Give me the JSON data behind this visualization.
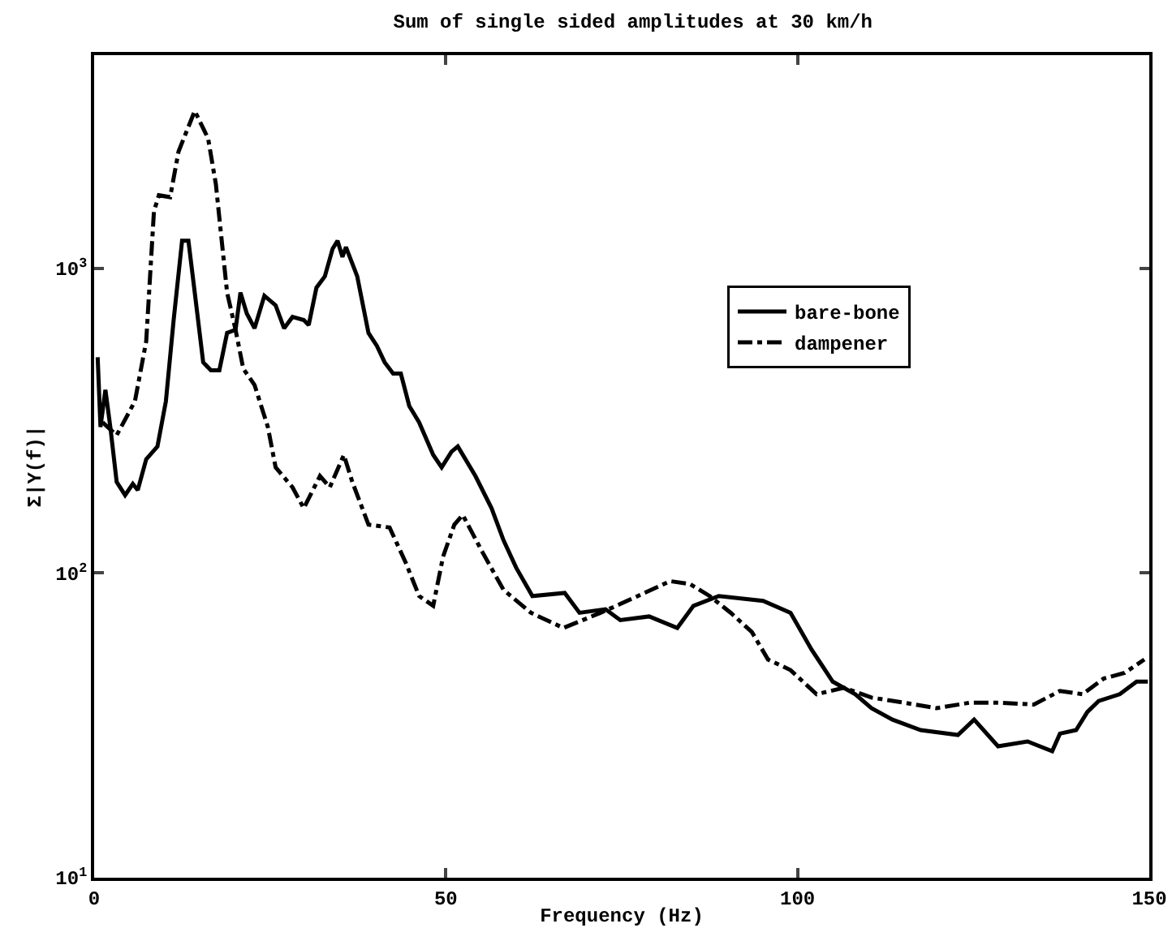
{
  "chart_data": {
    "type": "line",
    "title": "Sum of single sided amplitudes at 30 km/h",
    "xlabel": "Frequency (Hz)",
    "ylabel": "Σ|Y(f)|",
    "xlim": [
      0,
      150
    ],
    "xticks": [
      0,
      50,
      100,
      150
    ],
    "ylim": [
      10,
      5000
    ],
    "log": "y",
    "yticks": [
      {
        "value": 10,
        "label": "10$^{1}$"
      },
      {
        "value": 100,
        "label": "10$^{2}$"
      },
      {
        "value": 1000,
        "label": "10$^{3}$"
      }
    ],
    "grid": false,
    "legend": "right",
    "marker": "none",
    "series": [
      {
        "name": "bare-bone",
        "color": "#000000",
        "line_style": "solid",
        "x": [
          0.5,
          0.9,
          1.6,
          2.3,
          3.2,
          4.4,
          5.5,
          6.2,
          7.4,
          9.0,
          10.2,
          11.3,
          12.5,
          13.4,
          14.3,
          15.5,
          16.6,
          17.8,
          18.9,
          20.1,
          20.8,
          21.7,
          22.8,
          24.2,
          25.8,
          27.0,
          28.2,
          29.8,
          30.5,
          31.6,
          32.8,
          33.9,
          34.6,
          35.3,
          35.8,
          37.4,
          39.0,
          40.2,
          41.3,
          42.5,
          43.6,
          44.8,
          46.2,
          48.2,
          49.4,
          50.8,
          51.7,
          54.2,
          56.5,
          58.2,
          60.0,
          62.3,
          66.9,
          69.0,
          72.7,
          74.8,
          78.9,
          82.9,
          85.2,
          88.8,
          95.1,
          99.0,
          102.0,
          105.0,
          108.2,
          110.5,
          113.5,
          117.5,
          122.8,
          125.1,
          128.5,
          132.7,
          136.2,
          137.3,
          139.6,
          141.2,
          142.8,
          145.8,
          148.2,
          149.8
        ],
        "values": [
          510,
          301,
          399,
          301,
          199,
          180,
          196,
          187,
          236,
          260,
          366,
          676,
          1230,
          1230,
          832,
          491,
          462,
          462,
          613,
          628,
          832,
          710,
          635,
          812,
          755,
          635,
          692,
          676,
          651,
          863,
          940,
          1158,
          1230,
          1089,
          1172,
          940,
          613,
          556,
          491,
          451,
          451,
          353,
          312,
          244,
          222,
          250,
          260,
          208,
          163,
          128,
          104,
          84,
          86,
          74,
          76,
          70,
          72,
          66,
          78,
          84,
          81,
          74,
          56,
          44,
          40,
          36,
          33,
          30.5,
          29.4,
          33,
          27,
          28,
          26,
          29.7,
          30.5,
          35,
          38,
          40,
          44,
          44
        ]
      },
      {
        "name": "dampener",
        "color": "#000000",
        "line_style": "dashdot",
        "x": [
          1.2,
          3.2,
          5.8,
          7.4,
          8.5,
          9.2,
          10.8,
          12.0,
          14.3,
          16.2,
          17.3,
          18.9,
          20.1,
          21.2,
          22.8,
          24.7,
          25.8,
          28.2,
          29.8,
          32.1,
          33.5,
          35.5,
          36.7,
          39.0,
          42.0,
          44.3,
          46.2,
          48.2,
          49.6,
          51.2,
          52.4,
          55.2,
          58.2,
          62.1,
          66.7,
          72.0,
          77.3,
          81.9,
          84.7,
          87.5,
          90.5,
          93.5,
          95.8,
          99.0,
          102.7,
          106.6,
          110.5,
          115.2,
          119.8,
          124.4,
          129.0,
          133.6,
          137.3,
          140.5,
          143.5,
          146.5,
          149.3
        ],
        "values": [
          312,
          283,
          366,
          576,
          1535,
          1735,
          1710,
          2415,
          3280,
          2665,
          1890,
          832,
          628,
          468,
          414,
          301,
          222,
          191,
          163,
          208,
          191,
          244,
          199,
          144,
          141,
          108,
          84,
          78,
          113,
          144,
          155,
          117,
          88,
          74,
          66,
          74,
          84,
          94,
          92,
          84,
          74,
          64,
          52,
          48,
          40,
          42,
          39,
          37.5,
          36,
          37.5,
          37.5,
          37,
          41,
          40,
          45,
          47,
          52
        ]
      }
    ]
  }
}
